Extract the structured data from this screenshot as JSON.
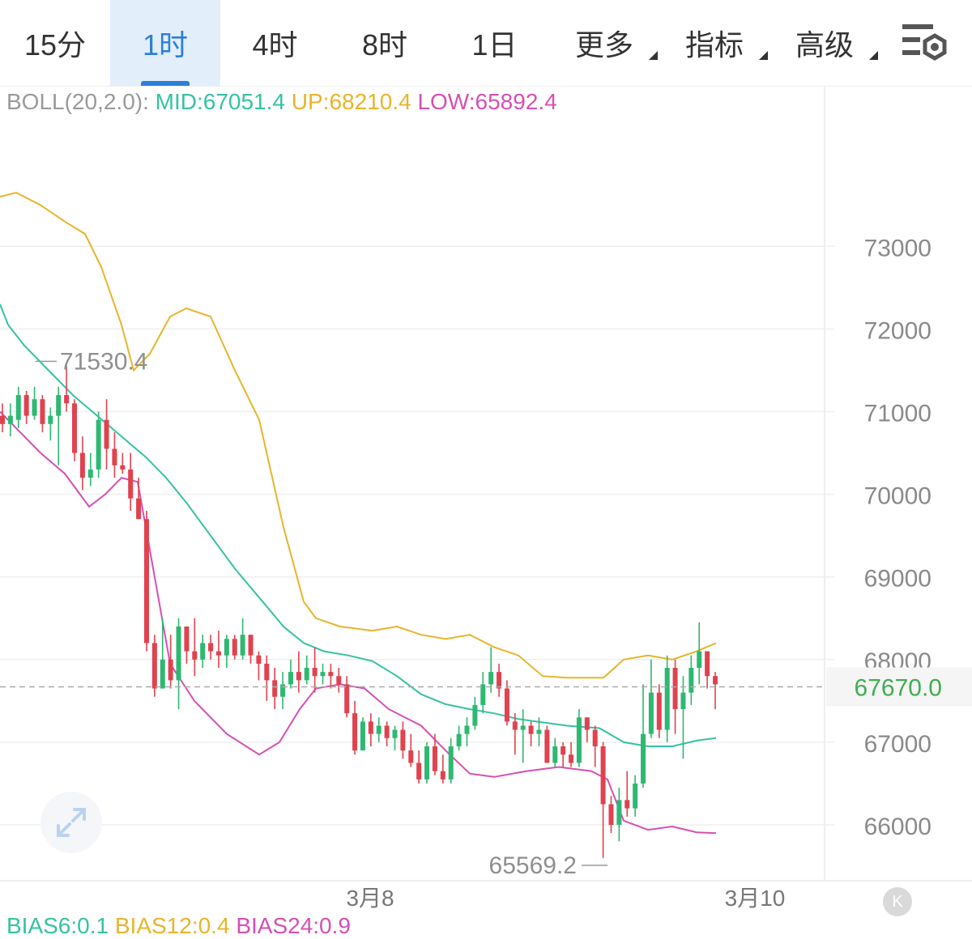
{
  "tabs": [
    {
      "label": "15分",
      "active": false,
      "dropdown": false
    },
    {
      "label": "1时",
      "active": true,
      "dropdown": false
    },
    {
      "label": "4时",
      "active": false,
      "dropdown": false
    },
    {
      "label": "8时",
      "active": false,
      "dropdown": false
    },
    {
      "label": "1日",
      "active": false,
      "dropdown": false
    },
    {
      "label": "更多",
      "active": false,
      "dropdown": true
    },
    {
      "label": "指标",
      "active": false,
      "dropdown": true
    },
    {
      "label": "高级",
      "active": false,
      "dropdown": true
    }
  ],
  "settings_icon": "chart-settings-icon",
  "boll": {
    "name": "BOLL(20,2.0):",
    "mid": "MID:67051.4",
    "up": "UP:68210.4",
    "low": "LOW:65892.4"
  },
  "bias": {
    "b6": "BIAS6:0.1",
    "b12": "BIAS12:0.4",
    "b24": "BIAS24:0.9"
  },
  "k_button": "K",
  "colors": {
    "up": "#2eb872",
    "down": "#e0424f",
    "mid": "#35c2a2",
    "upper": "#e8b42a",
    "lower": "#d64fb4",
    "accent": "#2b7fd9",
    "axis_text": "#8a8a8a",
    "grid": "#efefef",
    "last_price": "#3fae52"
  },
  "chart_data": {
    "type": "candlestick",
    "indicator": "BOLL(20,2.0)",
    "y_ticks": [
      66000,
      67000,
      68000,
      69000,
      70000,
      71000,
      72000,
      73000
    ],
    "x_ticks": [
      "3月8",
      "3月10"
    ],
    "ylim": [
      65400,
      73900
    ],
    "grid": true,
    "last_price": 67670.0,
    "last_price_label": "67670.0",
    "high_marker": {
      "value": 71530.4,
      "label": "71530.4"
    },
    "low_marker": {
      "value": 65569.2,
      "label": "65569.2"
    },
    "candles": [
      [
        70950,
        70850,
        71100,
        70750
      ],
      [
        70850,
        70950,
        71100,
        70700
      ],
      [
        70900,
        71200,
        71300,
        70800
      ],
      [
        71200,
        70950,
        71250,
        70850
      ],
      [
        70950,
        71150,
        71300,
        70900
      ],
      [
        71150,
        70850,
        71200,
        70750
      ],
      [
        70850,
        70950,
        71050,
        70650
      ],
      [
        70950,
        71200,
        71300,
        70350
      ],
      [
        71200,
        71100,
        71550,
        71000
      ],
      [
        71100,
        70500,
        71150,
        70400
      ],
      [
        70500,
        70200,
        70700,
        70050
      ],
      [
        70200,
        70300,
        70500,
        70100
      ],
      [
        70300,
        70900,
        71000,
        70200
      ],
      [
        70900,
        70550,
        71150,
        70300
      ],
      [
        70550,
        70350,
        70750,
        70200
      ],
      [
        70350,
        70300,
        70500,
        70250
      ],
      [
        70300,
        69950,
        70500,
        69800
      ],
      [
        69950,
        69700,
        70200,
        69700
      ],
      [
        69700,
        68200,
        69800,
        68100
      ],
      [
        68200,
        67650,
        68300,
        67550
      ],
      [
        67650,
        68000,
        68500,
        67650
      ],
      [
        68000,
        67750,
        68300,
        67650
      ],
      [
        67750,
        68400,
        68500,
        67400
      ],
      [
        68400,
        68100,
        68200,
        67950
      ],
      [
        68100,
        68000,
        68500,
        67800
      ],
      [
        68000,
        68200,
        68300,
        67900
      ],
      [
        68200,
        68100,
        68300,
        68000
      ],
      [
        68100,
        68050,
        68350,
        67900
      ],
      [
        68050,
        68250,
        68300,
        67900
      ],
      [
        68250,
        68050,
        68300,
        68000
      ],
      [
        68050,
        68300,
        68500,
        68000
      ],
      [
        68300,
        68050,
        68300,
        67950
      ],
      [
        68050,
        67950,
        68100,
        67750
      ],
      [
        67950,
        67750,
        68050,
        67500
      ],
      [
        67750,
        67550,
        67900,
        67400
      ],
      [
        67550,
        67700,
        67850,
        67400
      ],
      [
        67700,
        67850,
        68000,
        67650
      ],
      [
        67850,
        67750,
        68100,
        67600
      ],
      [
        67750,
        67900,
        68050,
        67700
      ],
      [
        67900,
        67800,
        68150,
        67600
      ],
      [
        67800,
        67850,
        67950,
        67700
      ],
      [
        67850,
        67800,
        67950,
        67650
      ],
      [
        67800,
        67700,
        67900,
        67600
      ],
      [
        67700,
        67350,
        67800,
        67300
      ],
      [
        67350,
        66900,
        67500,
        66850
      ],
      [
        66900,
        67250,
        67300,
        66950
      ],
      [
        67250,
        67100,
        67350,
        66950
      ],
      [
        67100,
        67200,
        67300,
        67000
      ],
      [
        67200,
        67050,
        67250,
        66950
      ],
      [
        67050,
        67150,
        67200,
        66900
      ],
      [
        67150,
        66900,
        67250,
        66800
      ],
      [
        66900,
        66750,
        67100,
        66700
      ],
      [
        66750,
        66550,
        66900,
        66500
      ],
      [
        66550,
        66950,
        67000,
        66500
      ],
      [
        66950,
        66650,
        67100,
        66600
      ],
      [
        66650,
        66550,
        66850,
        66500
      ],
      [
        66550,
        66950,
        67050,
        66500
      ],
      [
        66950,
        67100,
        67200,
        66900
      ],
      [
        67100,
        67200,
        67300,
        66950
      ],
      [
        67200,
        67450,
        67550,
        67150
      ],
      [
        67450,
        67700,
        67850,
        67350
      ],
      [
        67700,
        67850,
        68150,
        67600
      ],
      [
        67850,
        67650,
        67950,
        67550
      ],
      [
        67650,
        67250,
        67750,
        67200
      ],
      [
        67250,
        67150,
        67350,
        66850
      ],
      [
        67150,
        67200,
        67400,
        66750
      ],
      [
        67200,
        67100,
        67250,
        66950
      ],
      [
        67100,
        67150,
        67300,
        66950
      ],
      [
        67150,
        66750,
        67200,
        66750
      ],
      [
        66750,
        66950,
        67050,
        66700
      ],
      [
        66950,
        66850,
        67000,
        66700
      ],
      [
        66850,
        66750,
        67000,
        66700
      ],
      [
        66750,
        67300,
        67400,
        66700
      ],
      [
        67300,
        67150,
        67300,
        67000
      ],
      [
        67150,
        66950,
        67200,
        66700
      ],
      [
        66950,
        66250,
        67000,
        65600
      ],
      [
        66250,
        66000,
        66350,
        65900
      ],
      [
        66000,
        66300,
        66450,
        65800
      ],
      [
        66300,
        66200,
        66650,
        66100
      ],
      [
        66200,
        66500,
        66600,
        66100
      ],
      [
        66500,
        67100,
        67700,
        66450
      ],
      [
        67100,
        67600,
        68000,
        67050
      ],
      [
        67600,
        67150,
        67700,
        67050
      ],
      [
        67150,
        67900,
        68050,
        67000
      ],
      [
        67900,
        67400,
        68000,
        67100
      ],
      [
        67400,
        67600,
        67800,
        66800
      ],
      [
        67600,
        67900,
        68050,
        67450
      ],
      [
        67900,
        68100,
        68450,
        67700
      ],
      [
        68100,
        67800,
        68100,
        67650
      ],
      [
        67800,
        67700,
        67850,
        67400
      ]
    ],
    "mid_line": [
      [
        0,
        72300
      ],
      [
        10,
        72050
      ],
      [
        30,
        71800
      ],
      [
        60,
        71500
      ],
      [
        90,
        71200
      ],
      [
        120,
        70950
      ],
      [
        150,
        70700
      ],
      [
        180,
        70450
      ],
      [
        205,
        70200
      ],
      [
        230,
        69900
      ],
      [
        260,
        69500
      ],
      [
        290,
        69100
      ],
      [
        320,
        68750
      ],
      [
        350,
        68400
      ],
      [
        375,
        68200
      ],
      [
        400,
        68100
      ],
      [
        430,
        68050
      ],
      [
        460,
        67980
      ],
      [
        490,
        67800
      ],
      [
        520,
        67580
      ],
      [
        550,
        67460
      ],
      [
        580,
        67400
      ],
      [
        610,
        67350
      ],
      [
        640,
        67280
      ],
      [
        670,
        67240
      ],
      [
        700,
        67200
      ],
      [
        740,
        67170
      ],
      [
        770,
        67000
      ],
      [
        800,
        66950
      ],
      [
        830,
        66950
      ],
      [
        860,
        67020
      ],
      [
        884,
        67050
      ]
    ],
    "upper_line": [
      [
        0,
        73600
      ],
      [
        20,
        73650
      ],
      [
        50,
        73500
      ],
      [
        80,
        73300
      ],
      [
        105,
        73150
      ],
      [
        125,
        72750
      ],
      [
        150,
        72050
      ],
      [
        165,
        71500
      ],
      [
        185,
        71700
      ],
      [
        210,
        72150
      ],
      [
        230,
        72250
      ],
      [
        260,
        72150
      ],
      [
        290,
        71500
      ],
      [
        320,
        70900
      ],
      [
        350,
        69600
      ],
      [
        375,
        68700
      ],
      [
        390,
        68500
      ],
      [
        420,
        68400
      ],
      [
        460,
        68350
      ],
      [
        490,
        68400
      ],
      [
        520,
        68300
      ],
      [
        550,
        68250
      ],
      [
        580,
        68300
      ],
      [
        610,
        68150
      ],
      [
        640,
        68050
      ],
      [
        670,
        67800
      ],
      [
        700,
        67780
      ],
      [
        745,
        67780
      ],
      [
        770,
        68000
      ],
      [
        800,
        68050
      ],
      [
        830,
        68000
      ],
      [
        860,
        68100
      ],
      [
        884,
        68200
      ]
    ],
    "lower_line": [
      [
        0,
        71000
      ],
      [
        20,
        70800
      ],
      [
        50,
        70500
      ],
      [
        80,
        70250
      ],
      [
        110,
        69850
      ],
      [
        130,
        70000
      ],
      [
        150,
        70200
      ],
      [
        170,
        70150
      ],
      [
        190,
        69050
      ],
      [
        210,
        67950
      ],
      [
        240,
        67500
      ],
      [
        280,
        67100
      ],
      [
        320,
        66850
      ],
      [
        345,
        67000
      ],
      [
        370,
        67400
      ],
      [
        390,
        67650
      ],
      [
        420,
        67700
      ],
      [
        450,
        67650
      ],
      [
        480,
        67400
      ],
      [
        520,
        67200
      ],
      [
        550,
        66900
      ],
      [
        580,
        66620
      ],
      [
        610,
        66580
      ],
      [
        650,
        66650
      ],
      [
        690,
        66700
      ],
      [
        730,
        66650
      ],
      [
        750,
        66550
      ],
      [
        770,
        66050
      ],
      [
        800,
        65940
      ],
      [
        830,
        65980
      ],
      [
        860,
        65910
      ],
      [
        884,
        65900
      ]
    ]
  }
}
